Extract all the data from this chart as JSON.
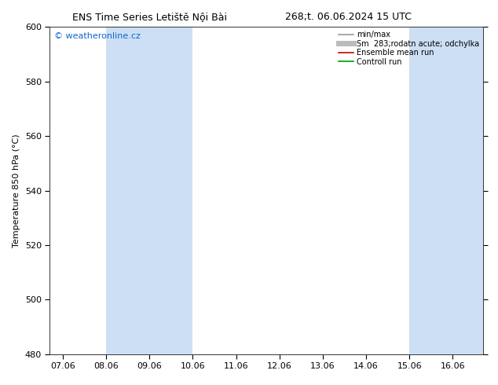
{
  "title1": "ENS Time Series Letiště Nội Bài",
  "title2": "268;t. 06.06.2024 15 UTC",
  "ylabel": "Temperature 850 hPa (°C)",
  "ylim": [
    480,
    600
  ],
  "yticks": [
    480,
    500,
    520,
    540,
    560,
    580,
    600
  ],
  "xlabels": [
    "07.06",
    "08.06",
    "09.06",
    "10.06",
    "11.06",
    "12.06",
    "13.06",
    "14.06",
    "15.06",
    "16.06"
  ],
  "x_values": [
    0,
    1,
    2,
    3,
    4,
    5,
    6,
    7,
    8,
    9
  ],
  "xlim": [
    -0.3,
    9.7
  ],
  "shade_bands": [
    {
      "x_start": 1,
      "x_end": 3
    },
    {
      "x_start": 8,
      "x_end": 9.7
    }
  ],
  "shade_color": "#ccdff5",
  "background_color": "#ffffff",
  "watermark": "© weatheronline.cz",
  "watermark_color": "#1166cc",
  "legend_entries": [
    {
      "label": "min/max",
      "color": "#999999",
      "lw": 1.2
    },
    {
      "label": "Sm  283;rodatn acute; odchylka",
      "color": "#bbbbbb",
      "lw": 5
    },
    {
      "label": "Ensemble mean run",
      "color": "#cc0000",
      "lw": 1.2
    },
    {
      "label": "Controll run",
      "color": "#009900",
      "lw": 1.2
    }
  ],
  "title_fontsize": 9,
  "axis_fontsize": 8,
  "tick_fontsize": 8,
  "legend_fontsize": 7
}
